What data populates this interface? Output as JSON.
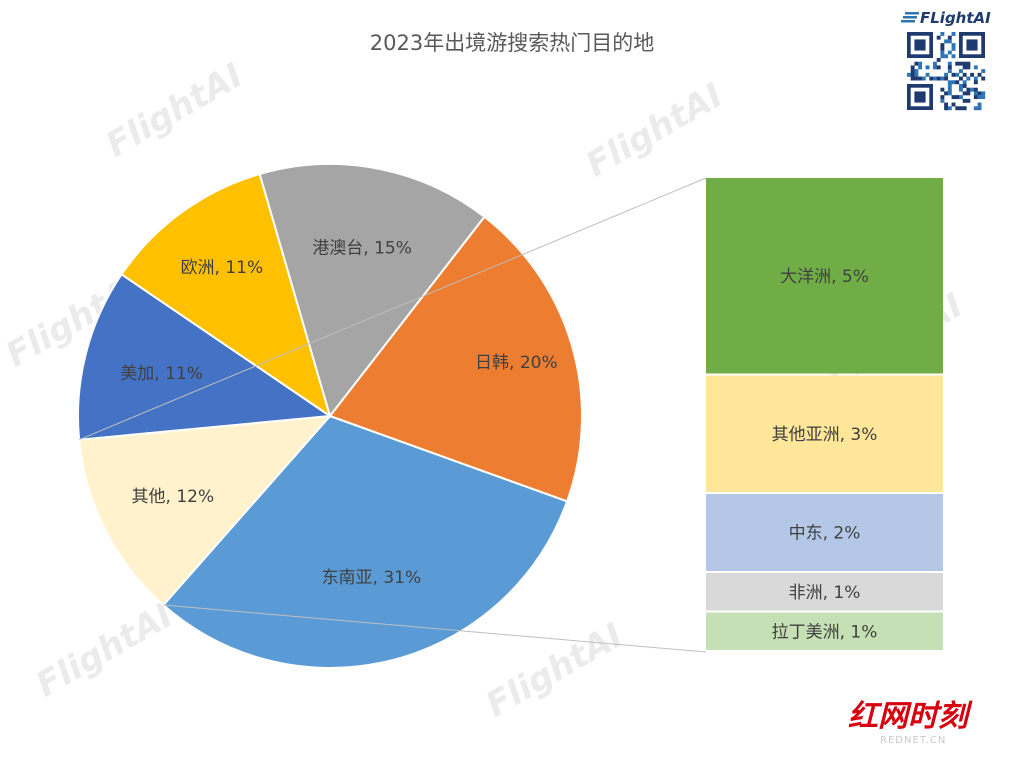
{
  "chart_data": {
    "type": "bar-of-pie",
    "title": "2023年出境游搜索热门目的地",
    "pie": [
      {
        "label": "东南亚",
        "value": 31,
        "color": "#5b9bd5",
        "label_text": "东南亚, 31%"
      },
      {
        "label": "其他",
        "value": 12,
        "color": "#fff2cc",
        "label_text": "其他, 12%"
      },
      {
        "label": "美加",
        "value": 11,
        "color": "#4472c4",
        "label_text": "美加, 11%"
      },
      {
        "label": "欧洲",
        "value": 11,
        "color": "#ffc000",
        "label_text": "欧洲, 11%"
      },
      {
        "label": "港澳台",
        "value": 15,
        "color": "#a5a5a5",
        "label_text": "港澳台, 15%"
      },
      {
        "label": "日韩",
        "value": 20,
        "color": "#ed7d31",
        "label_text": "日韩, 20%"
      }
    ],
    "breakdown_of": "其他",
    "breakdown": [
      {
        "label": "大洋洲",
        "value": 5,
        "color": "#70ad47",
        "label_text": "大洋洲, 5%"
      },
      {
        "label": "其他亚洲",
        "value": 3,
        "color": "#ffe699",
        "label_text": "其他亚洲, 3%"
      },
      {
        "label": "中东",
        "value": 2,
        "color": "#b4c7e7",
        "label_text": "中东, 2%"
      },
      {
        "label": "非洲",
        "value": 1,
        "color": "#d9d9d9",
        "label_text": "非洲, 1%"
      },
      {
        "label": "拉丁美洲",
        "value": 1,
        "color": "#c5e0b4",
        "label_text": "拉丁美洲, 1%"
      }
    ]
  },
  "branding": {
    "logo_text": "FLightAI",
    "watermark": "FlightAI",
    "corner_logo": "红网时刻",
    "corner_url": "REDNET.CN"
  }
}
